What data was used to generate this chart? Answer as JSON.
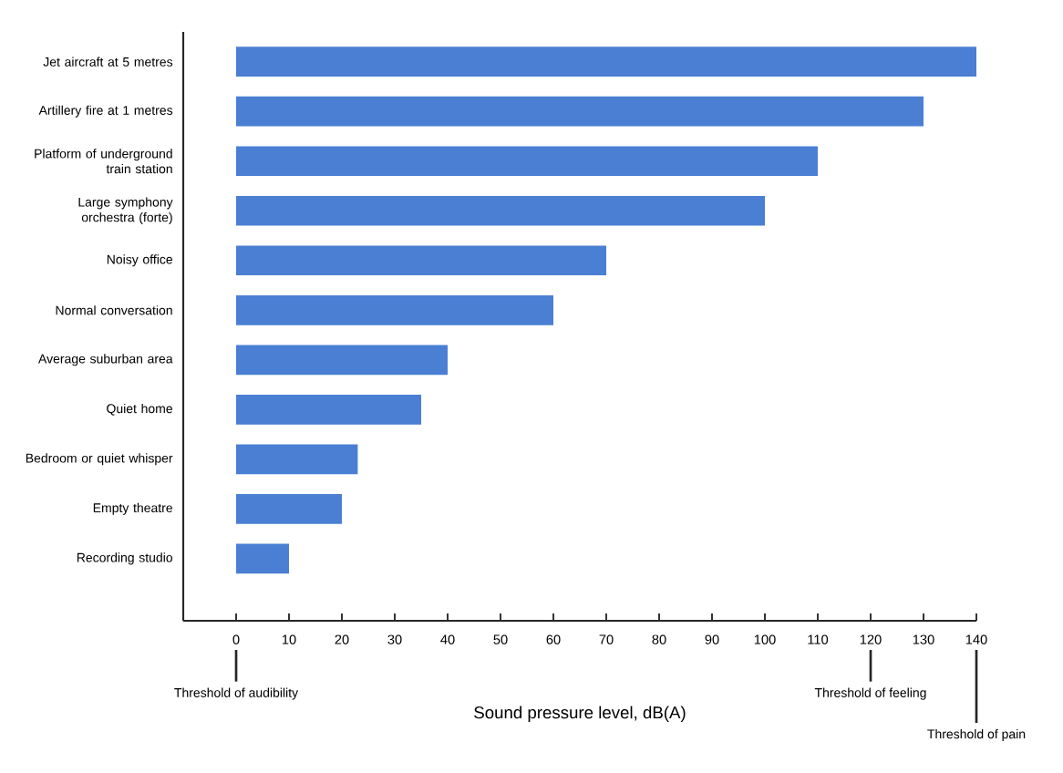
{
  "chart_data": {
    "type": "bar",
    "orientation": "horizontal",
    "xlabel": "Sound pressure level, dB(A)",
    "categories": [
      "Jet aircraft at 5 metres",
      "Artillery fire at 1 metres",
      "Platform of underground train station",
      "Large symphony orchestra (forte)",
      "Noisy office",
      "Normal conversation",
      "Average suburban area",
      "Quiet home",
      "Bedroom or quiet whisper",
      "Empty theatre",
      "Recording studio"
    ],
    "values": [
      140,
      130,
      110,
      100,
      70,
      60,
      40,
      35,
      23,
      20,
      10
    ],
    "color": "#4a7fd4",
    "xlim": [
      -10,
      140
    ],
    "xticks": [
      0,
      10,
      20,
      30,
      40,
      50,
      60,
      70,
      80,
      90,
      100,
      110,
      120,
      130,
      140
    ],
    "ref_lines": [
      {
        "axis": "x",
        "value": 0,
        "label": "Threshold of audibility"
      },
      {
        "axis": "x",
        "value": 120,
        "label": "Threshold of feeling"
      },
      {
        "axis": "x",
        "value": 140,
        "label": "Threshold of pain"
      }
    ],
    "grid": false
  }
}
